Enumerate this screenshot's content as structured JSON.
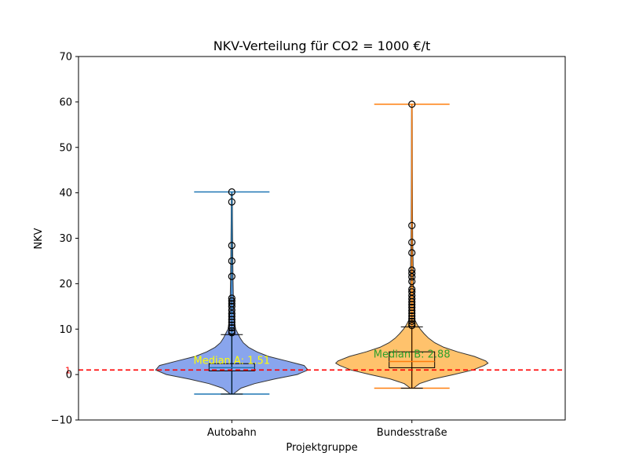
{
  "chart_data": {
    "type": "violin",
    "title": "NKV-Verteilung für CO2 = 1000 €/t",
    "xlabel": "Projektgruppe",
    "ylabel": "NKV",
    "ylim": [
      -10,
      70
    ],
    "yticks": [
      -10,
      0,
      10,
      20,
      30,
      40,
      50,
      60,
      70
    ],
    "categories": [
      "Autobahn",
      "Bundesstraße"
    ],
    "reference_line": {
      "value": 1,
      "label": "1",
      "color": "#ff0000",
      "style": "dashed"
    },
    "series": [
      {
        "category": "Autobahn",
        "fill": "#6b8fe8",
        "line": "#1f77b4",
        "min": -4.3,
        "max": 40.2,
        "box": {
          "q1": 0.8,
          "median": 1.51,
          "q3": 2.4,
          "whisker_low": -4.3,
          "whisker_high": 8.8
        },
        "median_label": "Median A: 1.51",
        "median_label_color": "#ffff00",
        "density": [
          [
            -4.3,
            0.02
          ],
          [
            -3,
            0.12
          ],
          [
            -2,
            0.3
          ],
          [
            -1,
            0.56
          ],
          [
            0,
            0.86
          ],
          [
            1,
            1.0
          ],
          [
            2,
            0.95
          ],
          [
            3,
            0.72
          ],
          [
            4,
            0.48
          ],
          [
            5,
            0.33
          ],
          [
            6,
            0.22
          ],
          [
            7,
            0.15
          ],
          [
            8,
            0.11
          ],
          [
            9,
            0.08
          ],
          [
            10,
            0.05
          ],
          [
            11,
            0.04
          ],
          [
            13,
            0.03
          ],
          [
            15,
            0.025
          ],
          [
            18,
            0.02
          ],
          [
            22,
            0.015
          ],
          [
            26,
            0.012
          ],
          [
            30,
            0.01
          ],
          [
            34,
            0.008
          ],
          [
            38,
            0.007
          ],
          [
            40.2,
            0.005
          ]
        ],
        "outliers": [
          9.2,
          9.6,
          10.3,
          10.9,
          11.5,
          12.1,
          12.8,
          13.4,
          14.2,
          15.0,
          15.6,
          16.2,
          16.8,
          21.6,
          25.0,
          28.4,
          38.0,
          40.2
        ]
      },
      {
        "category": "Bundesstraße",
        "fill": "#ffb347",
        "line": "#ff7f0e",
        "min": -3.0,
        "max": 59.5,
        "box": {
          "q1": 1.5,
          "median": 2.88,
          "q3": 5.0,
          "whisker_low": -3.0,
          "whisker_high": 10.5
        },
        "median_label": "Median B: 2.88",
        "median_label_color": "#2ca02c",
        "density": [
          [
            -3,
            0.02
          ],
          [
            -2,
            0.1
          ],
          [
            -1,
            0.28
          ],
          [
            0,
            0.55
          ],
          [
            1,
            0.8
          ],
          [
            2,
            0.95
          ],
          [
            2.5,
            1.0
          ],
          [
            3,
            0.97
          ],
          [
            4,
            0.82
          ],
          [
            5,
            0.6
          ],
          [
            6,
            0.42
          ],
          [
            7,
            0.3
          ],
          [
            8,
            0.22
          ],
          [
            9,
            0.16
          ],
          [
            10,
            0.11
          ],
          [
            11,
            0.07
          ],
          [
            12,
            0.04
          ],
          [
            14,
            0.03
          ],
          [
            17,
            0.025
          ],
          [
            20,
            0.02
          ],
          [
            25,
            0.015
          ],
          [
            30,
            0.01
          ],
          [
            35,
            0.008
          ],
          [
            45,
            0.006
          ],
          [
            55,
            0.005
          ],
          [
            59.5,
            0.004
          ]
        ],
        "outliers": [
          10.8,
          11.2,
          11.7,
          12.3,
          12.9,
          13.5,
          14.1,
          14.8,
          15.4,
          16.0,
          16.7,
          17.4,
          18.2,
          18.8,
          20.5,
          21.5,
          22.3,
          23.0,
          26.8,
          29.1,
          32.8,
          59.5
        ]
      }
    ]
  }
}
